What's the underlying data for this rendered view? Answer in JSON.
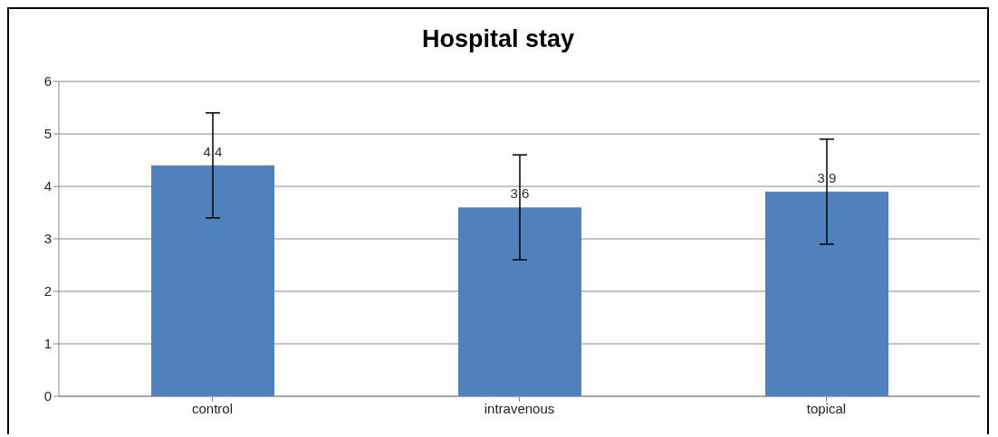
{
  "chart_data": {
    "type": "bar",
    "title": "Hospital stay",
    "categories": [
      "control",
      "intravenous",
      "topical"
    ],
    "values": [
      4.4,
      3.6,
      3.9
    ],
    "errors": [
      1,
      1,
      1
    ],
    "color": "#4f81bd",
    "ylim": [
      0,
      6
    ],
    "yticks": [
      0,
      1,
      2,
      3,
      4,
      5,
      6
    ],
    "grid": "y",
    "data_labels": true
  }
}
